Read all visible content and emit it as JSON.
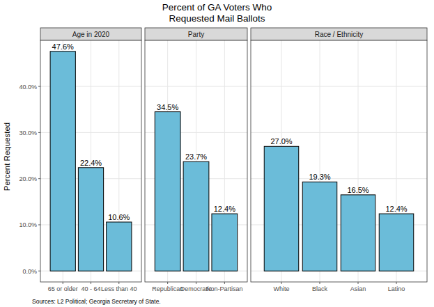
{
  "title": "Percent of GA Voters Who\nRequested Mail Ballots",
  "y_label": "Percent Requested",
  "source": "Sources: L2 Political; Georgia Secretary of State.",
  "chart_data": [
    {
      "type": "bar",
      "title": "Age in 2020",
      "categories": [
        "65 or older",
        "40 - 64",
        "Less than 40"
      ],
      "values": [
        47.6,
        22.4,
        10.6
      ],
      "value_labels": [
        "47.6%",
        "22.4%",
        "10.6%"
      ],
      "color": "#6bbcd9",
      "ylim": [
        -2.38,
        49.98
      ],
      "yticks": [
        {
          "value": 0,
          "label": "0.0%"
        },
        {
          "value": 10,
          "label": "10.0%"
        },
        {
          "value": 20,
          "label": "20.0%"
        },
        {
          "value": 30,
          "label": "30.0%"
        },
        {
          "value": 40,
          "label": "40.0%"
        }
      ],
      "grid": true,
      "data_labels": true
    },
    {
      "type": "bar",
      "title": "Party",
      "categories": [
        "Republican",
        "Democratic",
        "Non-Partisan"
      ],
      "values": [
        34.5,
        23.7,
        12.4
      ],
      "value_labels": [
        "34.5%",
        "23.7%",
        "12.4%"
      ],
      "color": "#6bbcd9",
      "ylim": [
        -2.38,
        49.98
      ],
      "yticks": [
        {
          "value": 0,
          "label": "0.0%"
        },
        {
          "value": 10,
          "label": "10.0%"
        },
        {
          "value": 20,
          "label": "20.0%"
        },
        {
          "value": 30,
          "label": "30.0%"
        },
        {
          "value": 40,
          "label": "40.0%"
        }
      ],
      "grid": true,
      "data_labels": true,
      "tick_labels": "x"
    },
    {
      "type": "bar",
      "title": "Race / Ethnicity",
      "categories": [
        "White",
        "Black",
        "Asian",
        "Latino"
      ],
      "values": [
        27.0,
        19.3,
        16.5,
        12.4
      ],
      "value_labels": [
        "27.0%",
        "19.3%",
        "16.5%",
        "12.4%"
      ],
      "color": "#6bbcd9",
      "ylim": [
        -2.38,
        49.98
      ],
      "yticks": [
        {
          "value": 0,
          "label": "0.0%"
        },
        {
          "value": 10,
          "label": "10.0%"
        },
        {
          "value": 20,
          "label": "20.0%"
        },
        {
          "value": 30,
          "label": "30.0%"
        },
        {
          "value": 40,
          "label": "40.0%"
        }
      ],
      "grid": true,
      "data_labels": true,
      "tick_labels": "x"
    }
  ]
}
